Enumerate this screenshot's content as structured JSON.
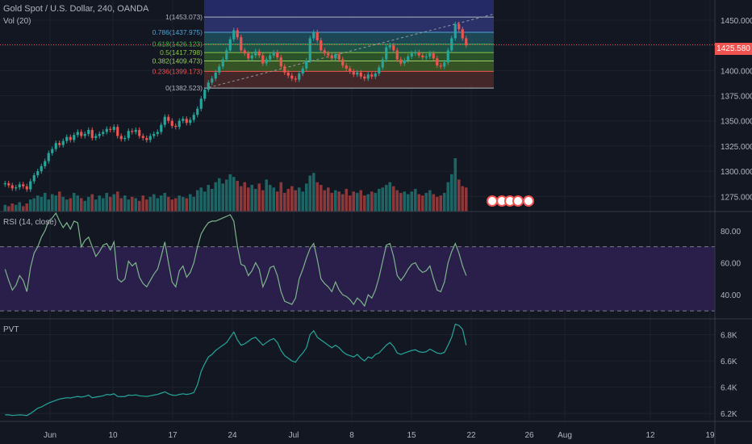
{
  "header": {
    "title": "Gold Spot / U.S. Dollar, 240, OANDA",
    "vol_label": "Vol (20)"
  },
  "panes": {
    "rsi_label": "RSI (14, close)",
    "pvt_label": "PVT"
  },
  "last_price": "1425.580",
  "colors": {
    "background": "#131722",
    "up": "#26a69a",
    "down": "#ef5350",
    "grid": "#1e222d",
    "rsi_line": "#7cb58b",
    "rsi_band": "#2a1f4a",
    "pvt_line": "#26a69a"
  },
  "chart_data": [
    {
      "type": "candlestick",
      "title": "Gold Spot / U.S. Dollar, 240, OANDA",
      "x_ticks": [
        "Jun",
        "10",
        "17",
        "24",
        "Jul",
        "8",
        "15",
        "22",
        "26",
        "Aug",
        "12",
        "19"
      ],
      "y_ticks": [
        1275,
        1300,
        1325,
        1350,
        1375,
        1400,
        1425,
        1450
      ],
      "ylim": [
        1260,
        1470
      ],
      "close_series": [
        1288,
        1286,
        1283,
        1284,
        1287,
        1285,
        1282,
        1290,
        1296,
        1300,
        1305,
        1310,
        1318,
        1322,
        1328,
        1326,
        1330,
        1334,
        1331,
        1336,
        1339,
        1335,
        1337,
        1341,
        1333,
        1335,
        1337,
        1339,
        1342,
        1341,
        1344,
        1335,
        1332,
        1333,
        1340,
        1339,
        1341,
        1335,
        1333,
        1331,
        1335,
        1337,
        1339,
        1346,
        1354,
        1350,
        1345,
        1344,
        1350,
        1352,
        1348,
        1351,
        1356,
        1362,
        1372,
        1381,
        1388,
        1392,
        1398,
        1404,
        1411,
        1420,
        1431,
        1440,
        1433,
        1420,
        1417,
        1412,
        1415,
        1419,
        1415,
        1407,
        1411,
        1415,
        1418,
        1413,
        1404,
        1398,
        1395,
        1392,
        1391,
        1397,
        1402,
        1410,
        1432,
        1438,
        1430,
        1420,
        1417,
        1415,
        1412,
        1416,
        1411,
        1405,
        1402,
        1399,
        1396,
        1398,
        1394,
        1392,
        1396,
        1394,
        1397,
        1403,
        1411,
        1423,
        1425,
        1420,
        1411,
        1407,
        1410,
        1414,
        1417,
        1418,
        1415,
        1413,
        1414,
        1417,
        1412,
        1405,
        1404,
        1408,
        1420,
        1432,
        1446,
        1441,
        1432,
        1425
      ],
      "fibonacci_levels": [
        {
          "level": "1",
          "price": "1453.073"
        },
        {
          "level": "0.786",
          "price": "1437.975"
        },
        {
          "level": "0.618",
          "price": "1426.123"
        },
        {
          "level": "0.5",
          "price": "1417.798"
        },
        {
          "level": "0.382",
          "price": "1409.473"
        },
        {
          "level": "0.236",
          "price": "1399.173"
        },
        {
          "level": "0",
          "price": "1382.523"
        }
      ]
    },
    {
      "type": "line",
      "title": "RSI (14, close)",
      "y_ticks": [
        40,
        60,
        80
      ],
      "ylim": [
        25,
        92
      ],
      "overbought": 70,
      "oversold": 30,
      "values": [
        56,
        49,
        43,
        46,
        52,
        49,
        42,
        57,
        66,
        70,
        76,
        80,
        86,
        88,
        91,
        86,
        82,
        85,
        81,
        86,
        85,
        70,
        74,
        76,
        70,
        64,
        67,
        71,
        72,
        68,
        73,
        50,
        48,
        50,
        61,
        58,
        60,
        51,
        47,
        45,
        49,
        53,
        56,
        64,
        73,
        60,
        48,
        45,
        55,
        58,
        51,
        54,
        60,
        70,
        78,
        82,
        85,
        86,
        86,
        87,
        88,
        89,
        90,
        86,
        70,
        59,
        58,
        52,
        55,
        60,
        56,
        45,
        50,
        57,
        58,
        52,
        42,
        36,
        35,
        34,
        38,
        50,
        56,
        63,
        69,
        72,
        62,
        50,
        47,
        45,
        42,
        48,
        43,
        40,
        39,
        37,
        34,
        38,
        36,
        33,
        40,
        38,
        43,
        51,
        61,
        71,
        72,
        64,
        52,
        49,
        52,
        56,
        59,
        60,
        56,
        54,
        55,
        58,
        50,
        43,
        42,
        48,
        60,
        67,
        72,
        66,
        58,
        52
      ]
    },
    {
      "type": "line",
      "title": "PVT",
      "y_ticks": [
        "6.2K",
        "6.4K",
        "6.6K",
        "6.8K"
      ],
      "ylim": [
        6140,
        6920
      ],
      "values": [
        6190,
        6190,
        6185,
        6187,
        6190,
        6188,
        6185,
        6200,
        6220,
        6240,
        6250,
        6265,
        6280,
        6290,
        6300,
        6310,
        6315,
        6320,
        6318,
        6325,
        6330,
        6325,
        6330,
        6340,
        6320,
        6325,
        6330,
        6335,
        6345,
        6342,
        6350,
        6330,
        6328,
        6330,
        6340,
        6338,
        6342,
        6335,
        6332,
        6330,
        6335,
        6340,
        6345,
        6355,
        6365,
        6350,
        6340,
        6338,
        6345,
        6350,
        6345,
        6350,
        6360,
        6420,
        6520,
        6580,
        6630,
        6650,
        6680,
        6700,
        6720,
        6740,
        6780,
        6820,
        6760,
        6720,
        6730,
        6750,
        6770,
        6780,
        6750,
        6720,
        6740,
        6760,
        6770,
        6740,
        6680,
        6640,
        6620,
        6600,
        6590,
        6630,
        6660,
        6700,
        6800,
        6830,
        6780,
        6760,
        6740,
        6720,
        6700,
        6720,
        6700,
        6670,
        6650,
        6640,
        6630,
        6650,
        6620,
        6600,
        6630,
        6620,
        6650,
        6660,
        6690,
        6720,
        6740,
        6710,
        6660,
        6650,
        6660,
        6670,
        6680,
        6685,
        6670,
        6665,
        6670,
        6690,
        6675,
        6660,
        6655,
        6665,
        6720,
        6780,
        6880,
        6870,
        6840,
        6720
      ]
    },
    {
      "type": "bar",
      "title": "Vol (20)",
      "values": [
        5,
        4,
        6,
        5,
        7,
        4,
        6,
        9,
        10,
        12,
        11,
        14,
        9,
        13,
        12,
        15,
        11,
        9,
        10,
        14,
        12,
        10,
        8,
        11,
        13,
        9,
        12,
        10,
        14,
        11,
        13,
        15,
        10,
        12,
        9,
        11,
        10,
        8,
        12,
        9,
        11,
        13,
        10,
        12,
        14,
        11,
        9,
        10,
        12,
        11,
        10,
        13,
        11,
        16,
        18,
        15,
        20,
        17,
        22,
        25,
        21,
        24,
        28,
        26,
        23,
        19,
        22,
        18,
        20,
        17,
        21,
        16,
        24,
        20,
        18,
        15,
        22,
        14,
        17,
        19,
        16,
        18,
        15,
        21,
        27,
        29,
        22,
        20,
        16,
        18,
        14,
        16,
        15,
        13,
        17,
        12,
        15,
        14,
        16,
        12,
        13,
        15,
        14,
        17,
        18,
        20,
        22,
        19,
        16,
        14,
        15,
        13,
        15,
        17,
        13,
        12,
        14,
        16,
        13,
        11,
        12,
        14,
        22,
        28,
        40,
        24,
        19,
        18
      ]
    }
  ]
}
